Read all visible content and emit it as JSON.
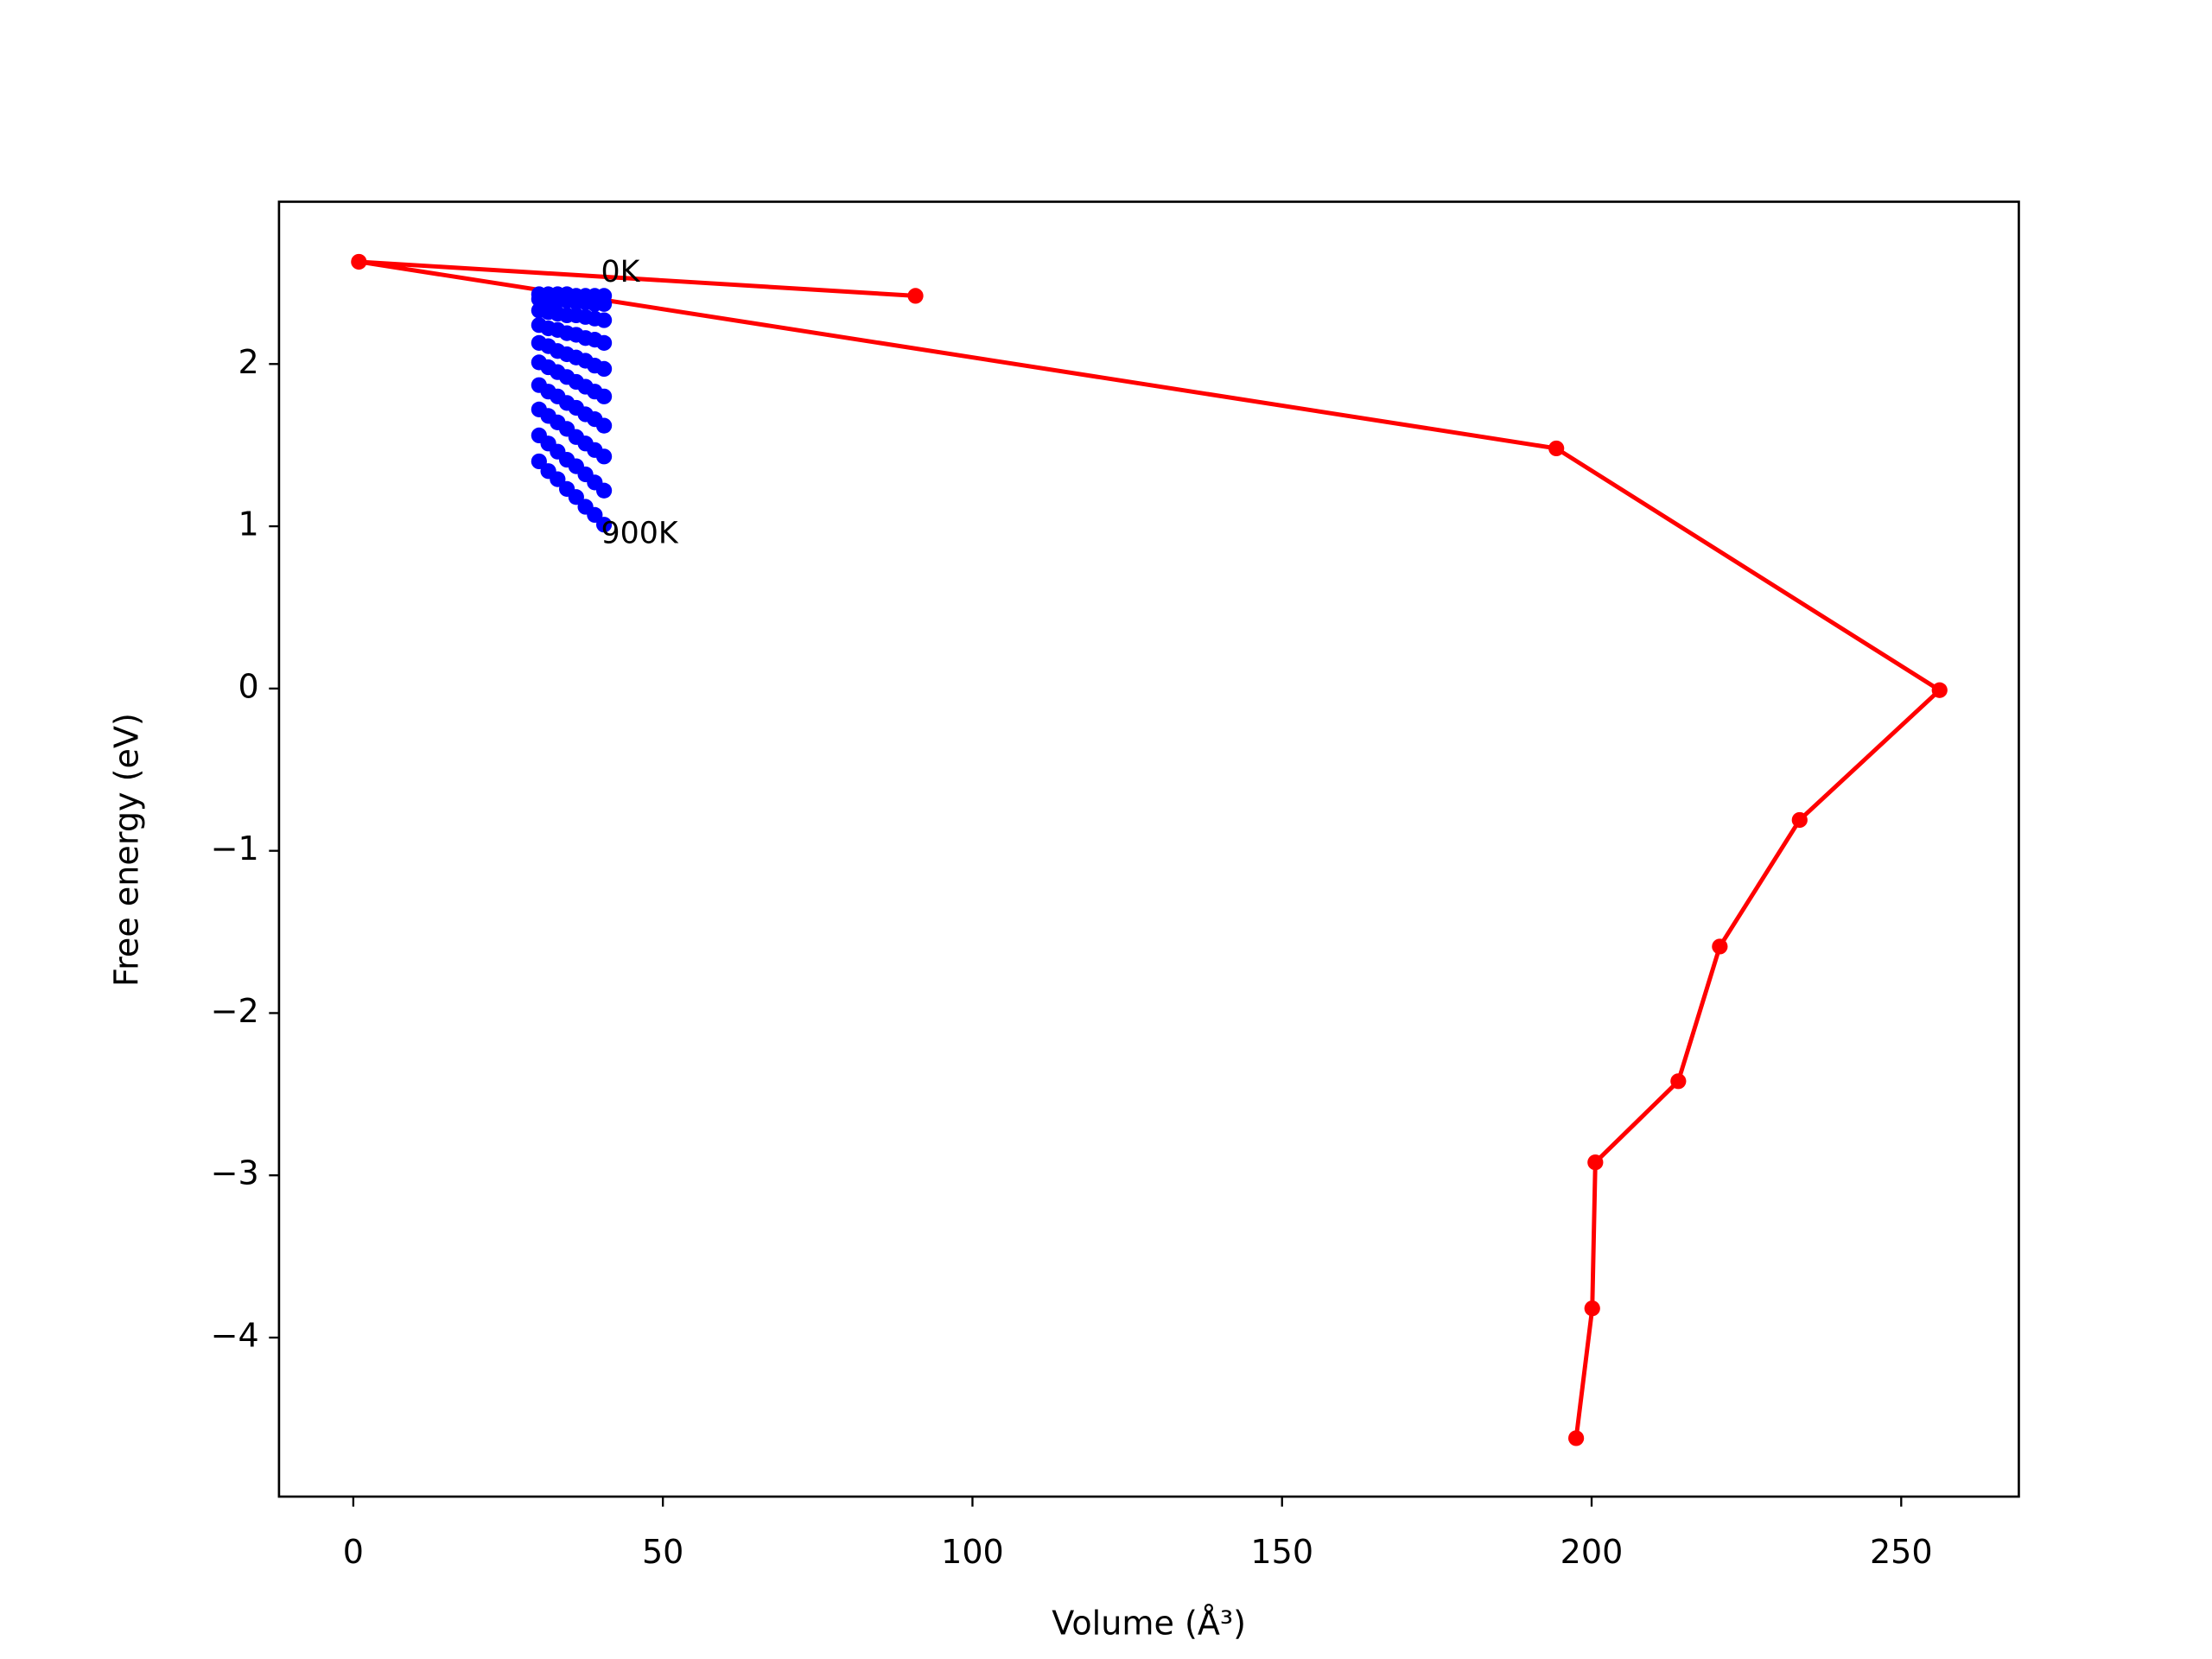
{
  "chart_data": {
    "type": "line",
    "xlabel": "Volume (Å³)",
    "ylabel": "Free energy (eV)",
    "xlim": [
      -12,
      269
    ],
    "ylim": [
      -4.98,
      3.0
    ],
    "xticks": [
      0,
      50,
      100,
      150,
      200,
      250
    ],
    "yticks": [
      {
        "value": -4,
        "label": "−4"
      },
      {
        "value": -3,
        "label": "−3"
      },
      {
        "value": -2,
        "label": "−2"
      },
      {
        "value": -1,
        "label": "−1"
      },
      0,
      1,
      2
    ],
    "grid": false,
    "series": [
      {
        "color": "#ff0000",
        "x": [
          90.8,
          0.9,
          194.3,
          256.2,
          233.6,
          220.7,
          214.0,
          200.6,
          200.1,
          197.5
        ],
        "values": [
          2.42,
          2.63,
          1.48,
          -0.01,
          -0.81,
          -1.59,
          -2.42,
          -2.92,
          -3.82,
          -4.62
        ]
      },
      {
        "color": "#0000ff",
        "x": [
          30,
          31.5,
          33,
          34.5,
          36,
          37.5,
          39,
          40.5
        ],
        "values": [
          2.43,
          2.43,
          2.43,
          2.43,
          2.42,
          2.42,
          2.42,
          2.42
        ]
      },
      {
        "color": "#0000ff",
        "x": [
          30,
          31.5,
          33,
          34.5,
          36,
          37.5,
          39,
          40.5
        ],
        "values": [
          2.4,
          2.4,
          2.39,
          2.39,
          2.38,
          2.38,
          2.37,
          2.37
        ]
      },
      {
        "color": "#0000ff",
        "x": [
          30,
          31.5,
          33,
          34.5,
          36,
          37.5,
          39,
          40.5
        ],
        "values": [
          2.33,
          2.32,
          2.31,
          2.3,
          2.3,
          2.29,
          2.28,
          2.27
        ]
      },
      {
        "color": "#0000ff",
        "x": [
          30,
          31.5,
          33,
          34.5,
          36,
          37.5,
          39,
          40.5
        ],
        "values": [
          2.24,
          2.22,
          2.21,
          2.19,
          2.18,
          2.16,
          2.15,
          2.13
        ]
      },
      {
        "color": "#0000ff",
        "x": [
          30,
          31.5,
          33,
          34.5,
          36,
          37.5,
          39,
          40.5
        ],
        "values": [
          2.13,
          2.11,
          2.08,
          2.06,
          2.04,
          2.02,
          1.99,
          1.97
        ]
      },
      {
        "color": "#0000ff",
        "x": [
          30,
          31.5,
          33,
          34.5,
          36,
          37.5,
          39,
          40.5
        ],
        "values": [
          2.01,
          1.98,
          1.95,
          1.92,
          1.89,
          1.86,
          1.83,
          1.8
        ]
      },
      {
        "color": "#0000ff",
        "x": [
          30,
          31.5,
          33,
          34.5,
          36,
          37.5,
          39,
          40.5
        ],
        "values": [
          1.87,
          1.83,
          1.8,
          1.76,
          1.73,
          1.69,
          1.66,
          1.62
        ]
      },
      {
        "color": "#0000ff",
        "x": [
          30,
          31.5,
          33,
          34.5,
          36,
          37.5,
          39,
          40.5
        ],
        "values": [
          1.72,
          1.68,
          1.64,
          1.6,
          1.55,
          1.51,
          1.47,
          1.43
        ]
      },
      {
        "color": "#0000ff",
        "x": [
          30,
          31.5,
          33,
          34.5,
          36,
          37.5,
          39,
          40.5
        ],
        "values": [
          1.56,
          1.51,
          1.46,
          1.41,
          1.37,
          1.32,
          1.27,
          1.22
        ]
      },
      {
        "color": "#0000ff",
        "x": [
          30,
          31.5,
          33,
          34.5,
          36,
          37.5,
          39,
          40.5
        ],
        "values": [
          1.4,
          1.34,
          1.29,
          1.23,
          1.18,
          1.12,
          1.07,
          1.01
        ]
      }
    ],
    "annotations": [
      {
        "text": "0K",
        "x": 40,
        "y": 2.56
      },
      {
        "text": "900K",
        "x": 40,
        "y": 0.95
      }
    ]
  }
}
